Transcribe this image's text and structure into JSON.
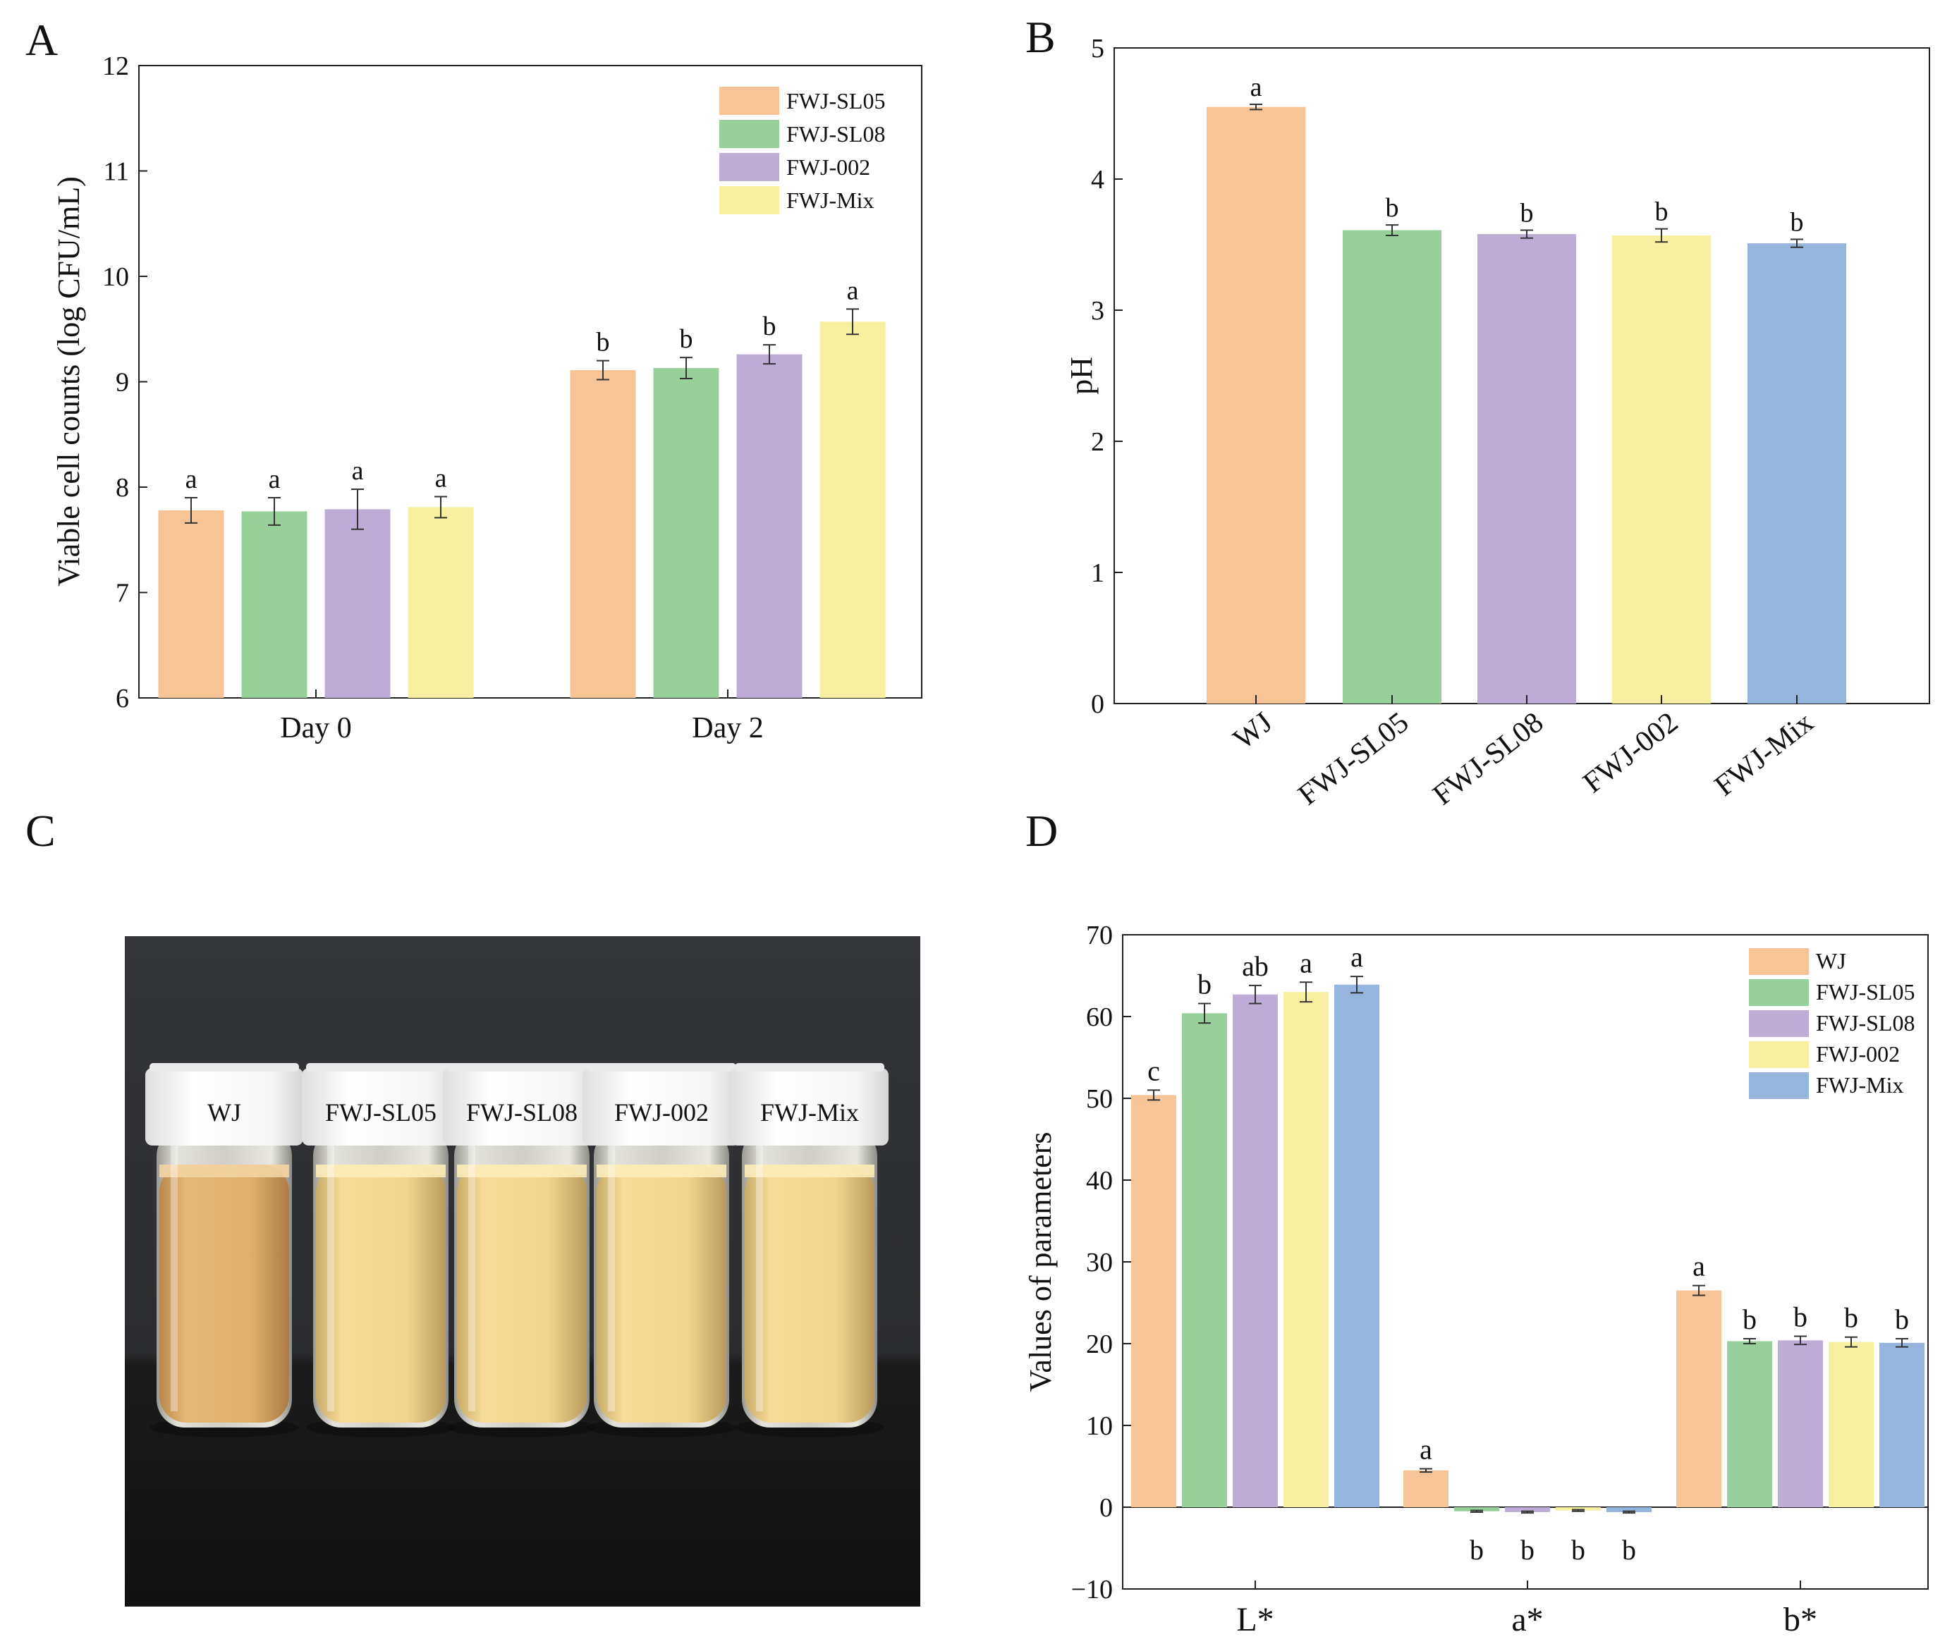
{
  "colors": {
    "orange": "#F6C497",
    "green": "#98D09C",
    "purple": "#BFACD6",
    "yellow": "#F6F0A0",
    "blue": "#95B5DF"
  },
  "chart_data": [
    {
      "panel": "A",
      "type": "bar",
      "categories": [
        "Day 0",
        "Day 2"
      ],
      "series": [
        {
          "name": "FWJ-SL05",
          "color": "orange",
          "values": [
            7.78,
            9.11
          ],
          "errors": [
            0.12,
            0.09
          ],
          "letters": [
            "a",
            "b"
          ]
        },
        {
          "name": "FWJ-SL08",
          "color": "green",
          "values": [
            7.77,
            9.13
          ],
          "errors": [
            0.13,
            0.1
          ],
          "letters": [
            "a",
            "b"
          ]
        },
        {
          "name": "FWJ-002",
          "color": "purple",
          "values": [
            7.79,
            9.26
          ],
          "errors": [
            0.19,
            0.09
          ],
          "letters": [
            "a",
            "b"
          ]
        },
        {
          "name": "FWJ-Mix",
          "color": "yellow",
          "values": [
            7.81,
            9.57
          ],
          "errors": [
            0.1,
            0.12
          ],
          "letters": [
            "a",
            "a"
          ]
        }
      ],
      "ylabel": "Viable cell counts (log CFU/mL)",
      "xlabel": "",
      "ylim": [
        6,
        12
      ],
      "yticks": [
        "6",
        "7",
        "8",
        "9",
        "10",
        "11",
        "12"
      ],
      "legend": "top-right"
    },
    {
      "panel": "B",
      "type": "bar",
      "categories": [
        "WJ",
        "FWJ-SL05",
        "FWJ-SL08",
        "FWJ-002",
        "FWJ-Mix"
      ],
      "colors": [
        "orange",
        "green",
        "purple",
        "yellow",
        "blue"
      ],
      "values": [
        4.55,
        3.61,
        3.58,
        3.57,
        3.51
      ],
      "errors": [
        0.02,
        0.04,
        0.03,
        0.05,
        0.03
      ],
      "letters": [
        "a",
        "b",
        "b",
        "b",
        "b"
      ],
      "ylabel": "pH",
      "xlabel": "",
      "ylim": [
        0,
        5
      ],
      "yticks": [
        "0",
        "1",
        "2",
        "3",
        "4",
        "5"
      ]
    },
    {
      "panel": "D",
      "type": "bar",
      "categories": [
        "L*",
        "a*",
        "b*"
      ],
      "series": [
        {
          "name": "WJ",
          "color": "orange",
          "values": [
            50.4,
            4.5,
            26.5
          ],
          "errors": [
            0.6,
            0.2,
            0.6
          ],
          "letters": [
            "c",
            "a",
            "a"
          ]
        },
        {
          "name": "FWJ-SL05",
          "color": "green",
          "values": [
            60.4,
            -0.5,
            20.3
          ],
          "errors": [
            1.2,
            0.1,
            0.3
          ],
          "letters": [
            "b",
            "b",
            "b"
          ]
        },
        {
          "name": "FWJ-SL08",
          "color": "purple",
          "values": [
            62.7,
            -0.6,
            20.4
          ],
          "errors": [
            1.1,
            0.1,
            0.5
          ],
          "letters": [
            "ab",
            "b",
            "b"
          ]
        },
        {
          "name": "FWJ-002",
          "color": "yellow",
          "values": [
            63.0,
            -0.4,
            20.2
          ],
          "errors": [
            1.2,
            0.1,
            0.6
          ],
          "letters": [
            "a",
            "b",
            "b"
          ]
        },
        {
          "name": "FWJ-Mix",
          "color": "blue",
          "values": [
            63.9,
            -0.6,
            20.1
          ],
          "errors": [
            1.0,
            0.1,
            0.5
          ],
          "letters": [
            "a",
            "b",
            "b"
          ]
        }
      ],
      "ylabel": "Values of parameters",
      "xlabel": "",
      "ylim": [
        -10,
        70
      ],
      "yticks": [
        "−10",
        "0",
        "10",
        "20",
        "30",
        "40",
        "50",
        "60",
        "70"
      ],
      "legend": "top-right"
    }
  ],
  "panels": {
    "a": "A",
    "b": "B",
    "c": "C",
    "d": "D"
  },
  "photo": {
    "vials": [
      "WJ",
      "FWJ-SL05",
      "FWJ-SL08",
      "FWJ-002",
      "FWJ-Mix"
    ]
  }
}
